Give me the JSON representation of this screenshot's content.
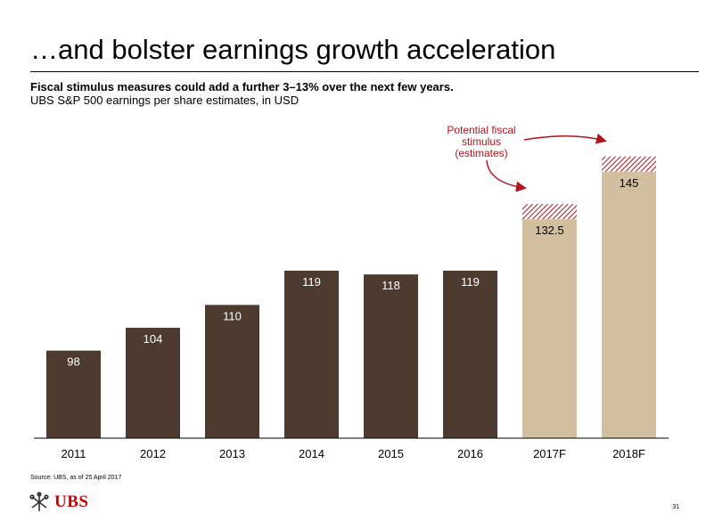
{
  "title": "…and bolster earnings growth acceleration",
  "subtitle": "Fiscal stimulus measures could add a further 3–13% over the next few years.",
  "subtitle2": "UBS S&P 500 earnings per share estimates, in USD",
  "source": "Source: UBS, as of 25 April 2017",
  "logo_text": "UBS",
  "page_number": "31",
  "colors": {
    "historical": "#4e3b30",
    "forecast": "#d2bf9f",
    "stimulus": "#b0151c",
    "label_text": "#ffffff",
    "arrow": "#b0151c"
  },
  "chart_data": {
    "type": "bar",
    "categories": [
      "2011",
      "2012",
      "2013",
      "2014",
      "2015",
      "2016",
      "2017F",
      "2018F"
    ],
    "values": [
      98,
      104,
      110,
      119,
      118,
      119,
      132.5,
      145
    ],
    "value_labels": [
      "98",
      "104",
      "110",
      "119",
      "118",
      "119",
      "132.5",
      "145"
    ],
    "forecast_categories": [
      "2017F",
      "2018F"
    ],
    "stimulus_upside": [
      0,
      0,
      0,
      0,
      0,
      0,
      4,
      4
    ],
    "annotation": "Potential fiscal stimulus (estimates)",
    "title": "",
    "xlabel": "",
    "ylabel": "",
    "ylim": [
      75,
      155
    ],
    "grid": false,
    "legend": "none"
  }
}
